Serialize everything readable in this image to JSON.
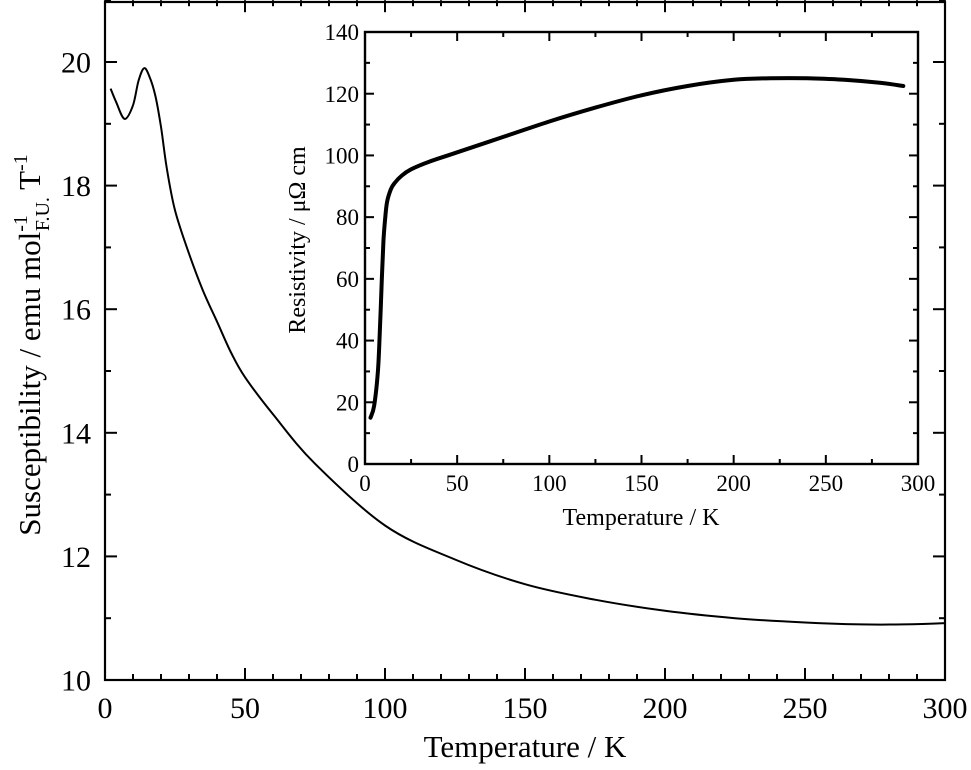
{
  "chart_data": [
    {
      "type": "line",
      "role": "main",
      "title": "",
      "xlabel": "Temperature / K",
      "ylabel": "Susceptibility / emu mol^-1_F.U. T^-1",
      "ylabel_parts": {
        "main": "Susceptibility / emu mol",
        "sup": "-1",
        "sub": "F.U.",
        "tail": " T",
        "tail_sup": "-1"
      },
      "xlim": [
        0,
        300
      ],
      "ylim": [
        10,
        21
      ],
      "xticks": [
        0,
        50,
        100,
        150,
        200,
        250,
        300
      ],
      "yticks": [
        10,
        12,
        14,
        16,
        18,
        20
      ],
      "grid": false,
      "legend": null,
      "series": [
        {
          "name": "Susceptibility",
          "color": "#000000",
          "x": [
            2,
            4,
            7,
            10,
            12,
            14,
            16,
            18,
            20,
            22,
            25,
            30,
            35,
            40,
            45,
            50,
            60,
            75,
            100,
            125,
            150,
            175,
            200,
            225,
            250,
            270,
            285,
            300
          ],
          "y": [
            19.57,
            19.35,
            19.08,
            19.3,
            19.7,
            19.9,
            19.75,
            19.45,
            18.95,
            18.3,
            17.6,
            16.9,
            16.3,
            15.8,
            15.3,
            14.9,
            14.3,
            13.5,
            12.5,
            11.95,
            11.55,
            11.3,
            11.12,
            11.0,
            10.93,
            10.9,
            10.9,
            10.92
          ]
        }
      ]
    },
    {
      "type": "line",
      "role": "inset",
      "title": "",
      "xlabel": "Temperature / K",
      "ylabel": "Resistivity / μΩ cm",
      "xlim": [
        0,
        300
      ],
      "ylim": [
        0,
        140
      ],
      "xticks": [
        0,
        50,
        100,
        150,
        200,
        250,
        300
      ],
      "yticks": [
        0,
        20,
        40,
        60,
        80,
        100,
        120,
        140
      ],
      "grid": false,
      "legend": null,
      "series": [
        {
          "name": "Resistivity",
          "color": "#000000",
          "x": [
            3,
            5,
            7,
            8,
            9,
            10,
            11,
            12,
            14,
            16,
            20,
            25,
            35,
            50,
            75,
            100,
            125,
            150,
            175,
            200,
            220,
            240,
            260,
            280,
            292
          ],
          "y": [
            15,
            19,
            30,
            42,
            58,
            72,
            80,
            85,
            89,
            91,
            93.5,
            95.5,
            98,
            101,
            106,
            111,
            115.5,
            119.5,
            122.5,
            124.5,
            125,
            125,
            124.5,
            123.5,
            122.5
          ]
        }
      ]
    }
  ]
}
